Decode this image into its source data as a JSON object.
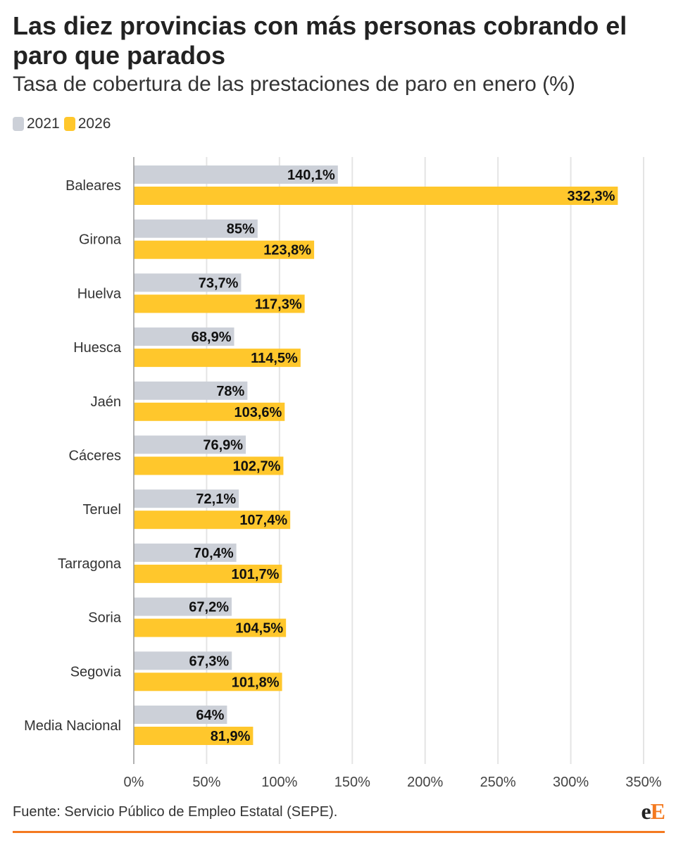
{
  "title": "Las diez provincias con más personas cobrando el paro que parados",
  "subtitle": "Tasa de cobertura de las prestaciones de paro en enero (%)",
  "legend": [
    {
      "label": "2021",
      "color": "#ccd0d8"
    },
    {
      "label": "2026",
      "color": "#ffc72c"
    }
  ],
  "source": "Fuente: Servicio Público de Empleo Estatal (SEPE).",
  "logo": {
    "part1": "e",
    "part2": "E"
  },
  "chart_data": {
    "type": "bar",
    "orientation": "horizontal",
    "categories": [
      "Baleares",
      "Girona",
      "Huelva",
      "Huesca",
      "Jaén",
      "Cáceres",
      "Teruel",
      "Tarragona",
      "Soria",
      "Segovia",
      "Media Nacional"
    ],
    "series": [
      {
        "name": "2021",
        "color": "#ccd0d8",
        "values": [
          140.1,
          85,
          73.7,
          68.9,
          78,
          76.9,
          72.1,
          70.4,
          67.2,
          67.3,
          64
        ],
        "labels": [
          "140,1%",
          "85%",
          "73,7%",
          "68,9%",
          "78%",
          "76,9%",
          "72,1%",
          "70,4%",
          "67,2%",
          "67,3%",
          "64%"
        ]
      },
      {
        "name": "2026",
        "color": "#ffc72c",
        "values": [
          332.3,
          123.8,
          117.3,
          114.5,
          103.6,
          102.7,
          107.4,
          101.7,
          104.5,
          101.8,
          81.9
        ],
        "labels": [
          "332,3%",
          "123,8%",
          "117,3%",
          "114,5%",
          "103,6%",
          "102,7%",
          "107,4%",
          "101,7%",
          "104,5%",
          "101,8%",
          "81,9%"
        ]
      }
    ],
    "xlim": [
      0,
      350
    ],
    "xticks": [
      0,
      50,
      100,
      150,
      200,
      250,
      300,
      350
    ],
    "xtick_labels": [
      "0%",
      "50%",
      "100%",
      "150%",
      "200%",
      "250%",
      "300%",
      "350%"
    ],
    "grid": true,
    "legend_position": "top-left"
  }
}
